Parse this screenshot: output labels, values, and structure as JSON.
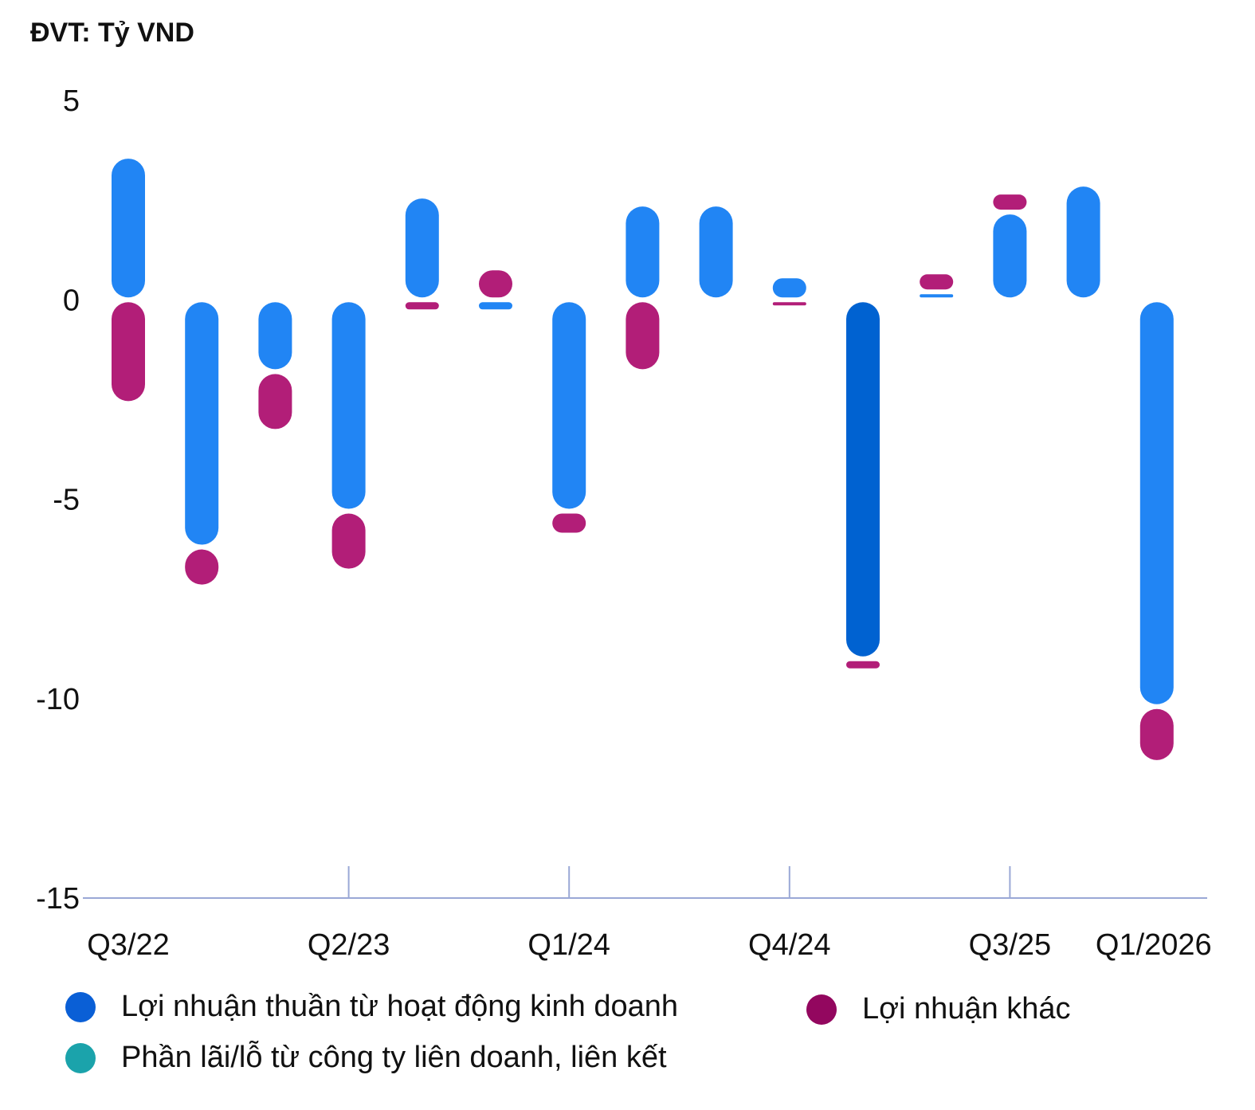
{
  "unit_label": "ĐVT: Tỷ VND",
  "chart_data": {
    "type": "bar",
    "stacked": true,
    "ylim": [
      -15,
      5
    ],
    "yticks": [
      5,
      0,
      -5,
      -10,
      -15
    ],
    "categories": [
      "Q3/22",
      "Q4/22",
      "Q1/23",
      "Q2/23",
      "Q3/23",
      "Q4/23",
      "Q1/24",
      "Q2/24",
      "Q3/24",
      "Q4/24",
      "Q1/25",
      "Q2/25",
      "Q3/25",
      "Q4/25",
      "Q1/2026"
    ],
    "xtick_labels": [
      "Q3/22",
      "Q2/23",
      "Q1/24",
      "Q4/24",
      "Q3/25",
      "Q1/2026"
    ],
    "series": [
      {
        "name": "Lợi nhuận thuần từ hoạt động kinh doanh",
        "color": "#2185F4",
        "values": [
          3.6,
          -6.2,
          -1.8,
          -5.3,
          2.6,
          -0.3,
          -5.3,
          2.4,
          2.4,
          0.6,
          -9.0,
          0.2,
          2.2,
          2.9,
          -10.2
        ]
      },
      {
        "name": "Lợi nhuận khác",
        "color": "#B21E78",
        "values": [
          -2.6,
          -1.0,
          -1.5,
          -1.5,
          -0.3,
          0.8,
          -0.6,
          -1.8,
          0,
          -0.1,
          -0.3,
          0.5,
          0.5,
          0,
          -1.4
        ]
      },
      {
        "name": "Phần lãi/lỗ từ công ty liên doanh, liên kết",
        "color": "#2AA0A4",
        "values": [
          0,
          0,
          0,
          0,
          0,
          0,
          0,
          0,
          0,
          0,
          0,
          0,
          0,
          0,
          0
        ]
      }
    ],
    "highlight": {
      "index": 10,
      "color": "#0062D1"
    },
    "grid": false,
    "legend_position": "bottom"
  },
  "legend": [
    {
      "label": "Lợi nhuận thuần từ hoạt động kinh doanh",
      "color": "#0A5FD6"
    },
    {
      "label": "Lợi nhuận khác",
      "color": "#93075F"
    },
    {
      "label": "Phần lãi/lỗ từ công ty liên doanh, liên kết",
      "color": "#1BA3AB"
    }
  ],
  "colors": {
    "axis": "#9AA8D6",
    "text": "#111111"
  }
}
